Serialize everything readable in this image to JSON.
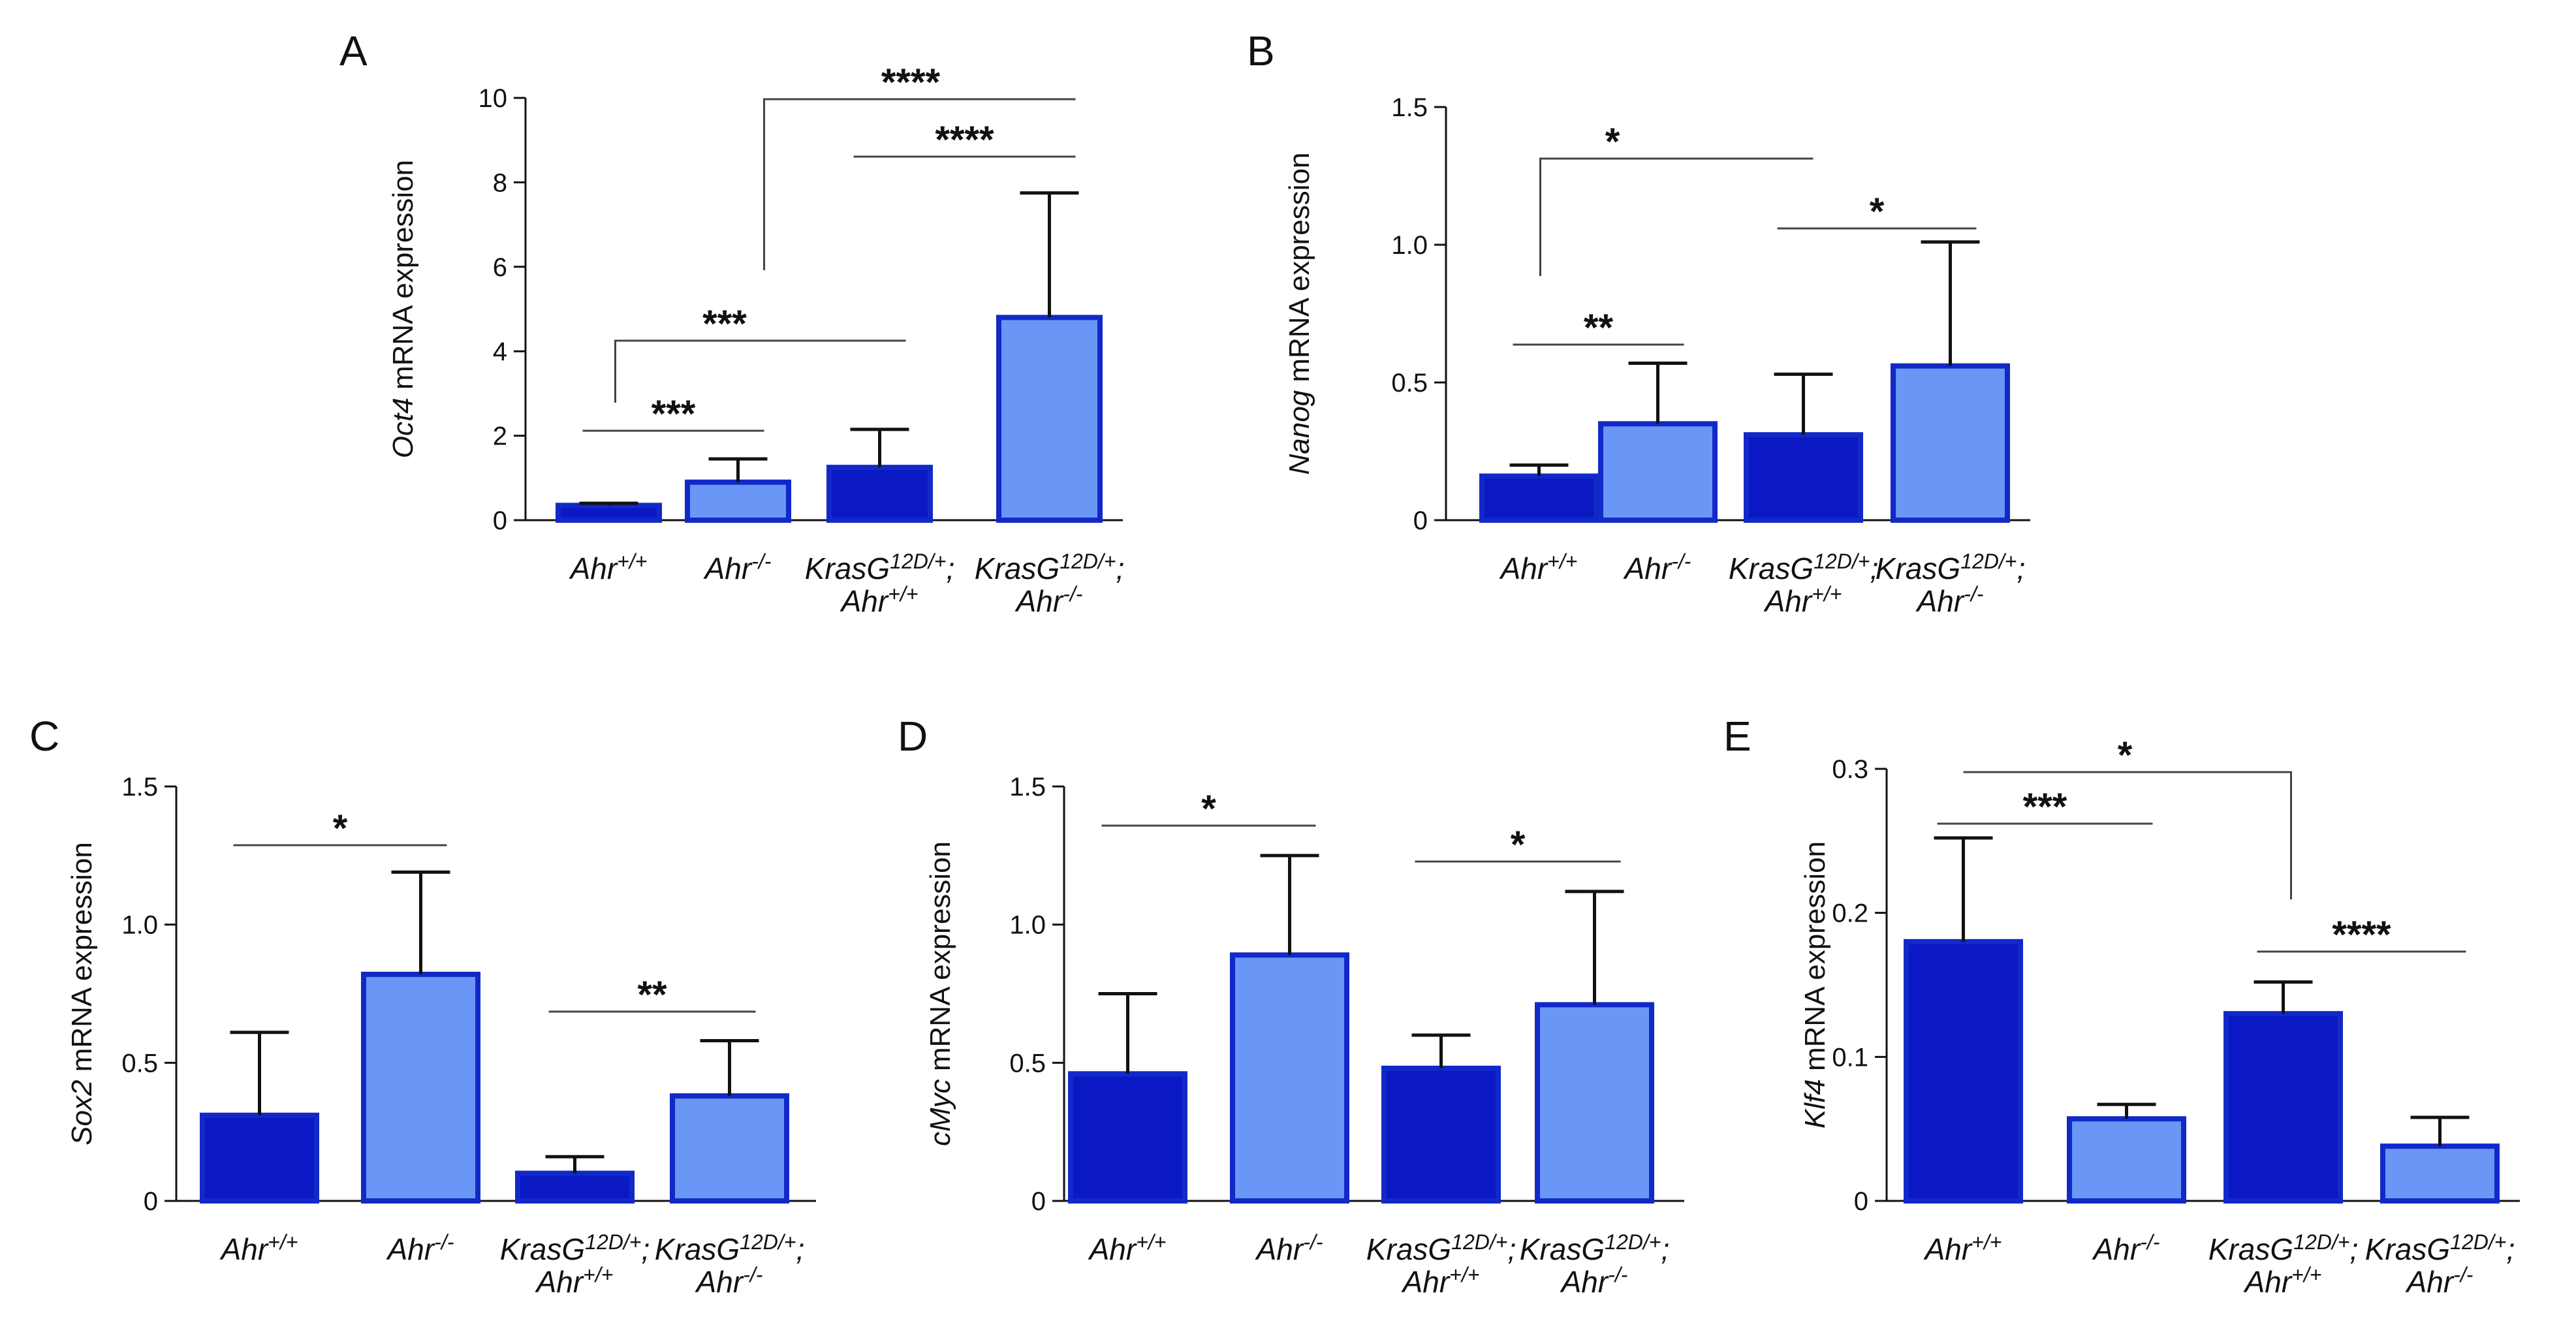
{
  "colors": {
    "dark": "#0a19c4",
    "light": "#6a96f5",
    "border": "#1229c8",
    "axis": "#111111",
    "bracket": "#444444"
  },
  "chart_data": [
    {
      "type": "bar",
      "panel": "A",
      "categories": [
        "Ahr+/+",
        "Ahr-/-",
        "KrasG12D/+; Ahr+/+",
        "KrasG12D/+; Ahr-/-"
      ],
      "values": [
        0.35,
        0.9,
        1.25,
        4.8
      ],
      "errors": [
        0.05,
        0.55,
        0.9,
        2.95
      ],
      "ylabel_gene": "Oct4",
      "ylabel_rest": " mRNA expression",
      "ylim": [
        0,
        10
      ],
      "yticks": [
        "0",
        "2",
        "4",
        "6",
        "8",
        "10"
      ],
      "significance": [
        {
          "from": 0,
          "to": 1,
          "label": "***"
        },
        {
          "from": 0,
          "to": 2,
          "label": "***"
        },
        {
          "from": 2,
          "to": 3,
          "label": "****"
        },
        {
          "from": 1,
          "to": 3,
          "label": "****"
        }
      ]
    },
    {
      "type": "bar",
      "panel": "B",
      "categories": [
        "Ahr+/+",
        "Ahr-/-",
        "KrasG12D/+; Ahr+/+",
        "KrasG12D/+; Ahr-/-"
      ],
      "values": [
        0.16,
        0.35,
        0.31,
        0.56
      ],
      "errors": [
        0.04,
        0.22,
        0.22,
        0.45
      ],
      "ylabel_gene": "Nanog",
      "ylabel_rest": " mRNA expression",
      "ylim": [
        0,
        1.5
      ],
      "yticks": [
        "0",
        "0.5",
        "1.0",
        "1.5"
      ],
      "significance": [
        {
          "from": 0,
          "to": 1,
          "label": "**"
        },
        {
          "from": 2,
          "to": 3,
          "label": "*"
        },
        {
          "from": 0,
          "to": 2,
          "label": "*"
        }
      ]
    },
    {
      "type": "bar",
      "panel": "C",
      "categories": [
        "Ahr+/+",
        "Ahr-/-",
        "KrasG12D/+; Ahr+/+",
        "KrasG12D/+; Ahr-/-"
      ],
      "values": [
        0.31,
        0.82,
        0.1,
        0.38
      ],
      "errors": [
        0.3,
        0.37,
        0.06,
        0.2
      ],
      "ylabel_gene": "Sox2",
      "ylabel_rest": " mRNA expression",
      "ylim": [
        0,
        1.5
      ],
      "yticks": [
        "0",
        "0.5",
        "1.0",
        "1.5"
      ],
      "significance": [
        {
          "from": 0,
          "to": 1,
          "label": "*"
        },
        {
          "from": 2,
          "to": 3,
          "label": "**"
        }
      ]
    },
    {
      "type": "bar",
      "panel": "D",
      "categories": [
        "Ahr+/+",
        "Ahr-/-",
        "KrasG12D/+; Ahr+/+",
        "KrasG12D/+; Ahr-/-"
      ],
      "values": [
        0.46,
        0.89,
        0.48,
        0.71
      ],
      "errors": [
        0.29,
        0.36,
        0.12,
        0.41
      ],
      "ylabel_gene": "cMyc",
      "ylabel_rest": " mRNA expression",
      "ylim": [
        0,
        1.5
      ],
      "yticks": [
        "0",
        "0.5",
        "1.0",
        "1.5"
      ],
      "significance": [
        {
          "from": 0,
          "to": 1,
          "label": "*"
        },
        {
          "from": 2,
          "to": 3,
          "label": "*"
        }
      ]
    },
    {
      "type": "bar",
      "panel": "E",
      "categories": [
        "Ahr+/+",
        "Ahr-/-",
        "KrasG12D/+; Ahr+/+",
        "KrasG12D/+; Ahr-/-"
      ],
      "values": [
        0.18,
        0.057,
        0.13,
        0.038
      ],
      "errors": [
        0.072,
        0.01,
        0.022,
        0.02
      ],
      "ylabel_gene": "Klf4",
      "ylabel_rest": " mRNA expression",
      "ylim": [
        0,
        0.3
      ],
      "yticks": [
        "0",
        "0.1",
        "0.2",
        "0.3"
      ],
      "significance": [
        {
          "from": 0,
          "to": 1,
          "label": "***"
        },
        {
          "from": 2,
          "to": 3,
          "label": "****"
        },
        {
          "from": 0,
          "to": 2,
          "label": "*"
        }
      ]
    }
  ]
}
